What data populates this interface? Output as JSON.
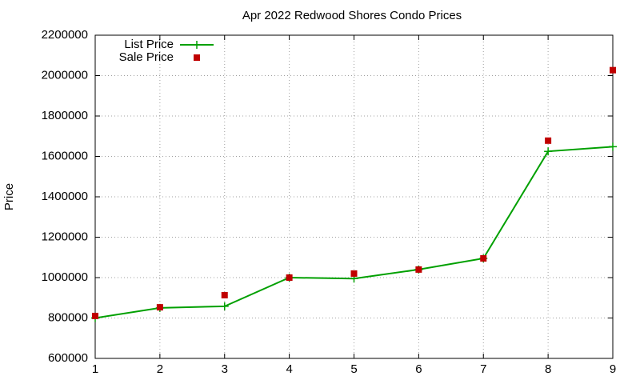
{
  "chart_data": {
    "type": "line",
    "title": "Apr 2022 Redwood Shores Condo Prices",
    "y_label": "Price",
    "x": [
      1,
      2,
      3,
      4,
      5,
      6,
      7,
      8,
      9
    ],
    "xlim": [
      1,
      9
    ],
    "xticks": [
      1,
      2,
      3,
      4,
      5,
      6,
      7,
      8,
      9
    ],
    "ylim": [
      600000,
      2200000
    ],
    "yticks": [
      600000,
      800000,
      1000000,
      1200000,
      1400000,
      1600000,
      1800000,
      2000000,
      2200000
    ],
    "grid": true,
    "legend": "top-left",
    "series": [
      {
        "name": "List Price",
        "color": "#00a000",
        "mode": "lines+markers",
        "values": [
          800000,
          850000,
          858000,
          1000000,
          995000,
          1040000,
          1095000,
          1625000,
          1648000
        ]
      },
      {
        "name": "Sale Price",
        "color": "#c00000",
        "mode": "markers",
        "values": [
          810000,
          853000,
          913000,
          1000000,
          1020000,
          1040000,
          1095000,
          1678000,
          2027000
        ]
      }
    ]
  }
}
